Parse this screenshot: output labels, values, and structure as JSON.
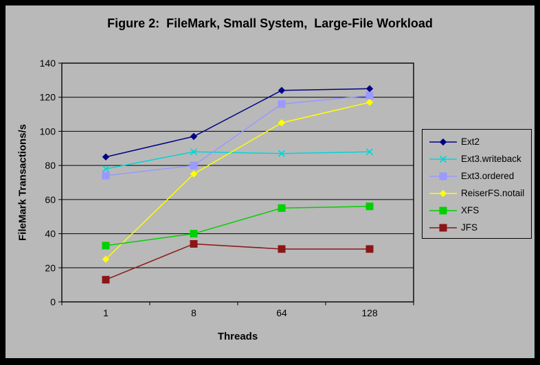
{
  "frame": {
    "background_color": "#b9b9b9",
    "border_color": "#000000"
  },
  "chart_data": {
    "type": "line",
    "title": "Figure 2:  FileMark, Small System,  Large-File Workload",
    "xlabel": "Threads",
    "ylabel": "FileMark Transactions/s",
    "categories": [
      "1",
      "8",
      "64",
      "128"
    ],
    "ylim": [
      0,
      140
    ],
    "yticks": [
      0,
      20,
      40,
      60,
      80,
      100,
      120,
      140
    ],
    "grid": "horizontal-black-gridlines",
    "legend_position": "right",
    "series": [
      {
        "name": "Ext2",
        "color": "#000082",
        "marker": "diamond",
        "values": [
          85,
          97,
          124,
          125
        ]
      },
      {
        "name": "Ext3.writeback",
        "color": "#00d5d5",
        "marker": "x",
        "values": [
          78,
          88,
          87,
          88
        ]
      },
      {
        "name": "Ext3.ordered",
        "color": "#9999ff",
        "marker": "square",
        "values": [
          74,
          80,
          116,
          121
        ]
      },
      {
        "name": "ReiserFS.notail",
        "color": "#ffff00",
        "marker": "diamond",
        "values": [
          25,
          75,
          105,
          117
        ]
      },
      {
        "name": "XFS",
        "color": "#00d000",
        "marker": "square",
        "values": [
          33,
          40,
          55,
          56
        ]
      },
      {
        "name": "JFS",
        "color": "#8b1616",
        "marker": "square",
        "values": [
          13,
          34,
          31,
          31
        ]
      }
    ]
  }
}
